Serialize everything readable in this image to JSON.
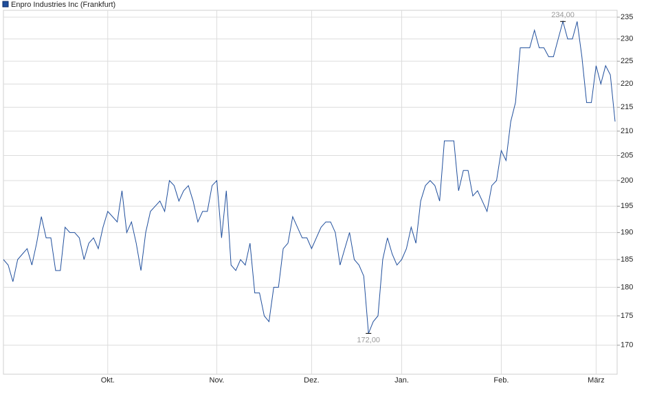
{
  "chart_data": {
    "type": "line",
    "log_scale": true,
    "grid": true,
    "legend": "top-left",
    "categories": [
      null,
      null,
      null,
      null,
      null,
      null,
      null,
      null,
      null,
      null,
      null,
      null,
      null,
      null,
      null,
      null,
      null,
      null,
      null,
      null,
      null,
      null,
      "Okt.",
      null,
      null,
      null,
      null,
      null,
      null,
      null,
      null,
      null,
      null,
      null,
      null,
      null,
      null,
      null,
      null,
      null,
      null,
      null,
      null,
      null,
      null,
      "Nov.",
      null,
      null,
      null,
      null,
      null,
      null,
      null,
      null,
      null,
      null,
      null,
      null,
      null,
      null,
      null,
      null,
      null,
      null,
      null,
      "Dez.",
      null,
      null,
      null,
      null,
      null,
      null,
      null,
      null,
      null,
      null,
      null,
      null,
      null,
      null,
      null,
      null,
      null,
      null,
      "Jan.",
      null,
      null,
      null,
      null,
      null,
      null,
      null,
      null,
      null,
      null,
      null,
      null,
      null,
      null,
      null,
      null,
      null,
      null,
      null,
      null,
      "Feb.",
      null,
      null,
      null,
      null,
      null,
      null,
      null,
      null,
      null,
      null,
      null,
      null,
      null,
      null,
      null,
      null,
      null,
      null,
      null,
      "März",
      null,
      null,
      null,
      null
    ],
    "series": [
      {
        "name": "Enpro Industries Inc (Frankfurt)",
        "color": "#1f4e9c",
        "values": [
          185,
          184,
          181,
          185,
          186,
          187,
          184,
          188,
          193,
          189,
          189,
          183,
          183,
          191,
          190,
          190,
          189,
          185,
          188,
          189,
          187,
          191,
          194,
          193,
          192,
          198,
          190,
          192,
          188,
          183,
          190,
          194,
          195,
          196,
          194,
          200,
          199,
          196,
          198,
          199,
          196,
          192,
          194,
          194,
          199,
          200,
          189,
          198,
          184,
          183,
          185,
          184,
          188,
          179,
          179,
          175,
          174,
          180,
          180,
          187,
          188,
          193,
          191,
          189,
          189,
          187,
          189,
          191,
          192,
          192,
          190,
          184,
          187,
          190,
          185,
          184,
          182,
          172,
          174,
          175,
          185,
          189,
          186,
          184,
          185,
          187,
          191,
          188,
          196,
          199,
          200,
          199,
          196,
          208,
          208,
          208,
          198,
          202,
          202,
          197,
          198,
          196,
          194,
          199,
          200,
          206,
          204,
          212,
          216,
          228,
          228,
          228,
          232,
          228,
          228,
          226,
          226,
          230,
          234,
          230,
          230,
          234,
          226,
          216,
          216,
          224,
          220,
          224,
          222,
          212
        ]
      }
    ],
    "max_label": "234,00",
    "min_label": "172,00",
    "ylim": [
      165.2,
      236.6
    ],
    "yticks": [
      170,
      175,
      180,
      185,
      190,
      195,
      200,
      205,
      210,
      215,
      220,
      225,
      230,
      235
    ]
  }
}
